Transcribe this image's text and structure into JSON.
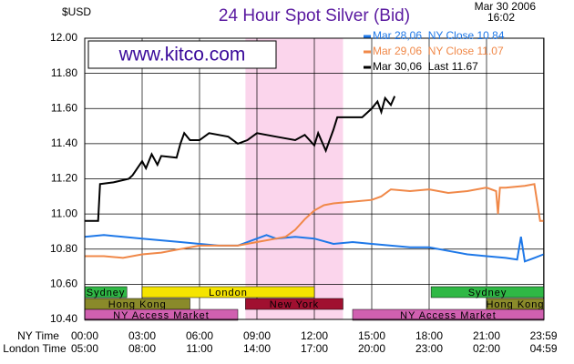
{
  "chart_data": {
    "type": "line",
    "title": "24 Hour Spot Silver (Bid)",
    "unit_label": "$USD",
    "date": "Mar 30 2006",
    "time": "16:02",
    "watermark": "www.kitco.com",
    "x_row_labels": [
      "NY Time",
      "London Time"
    ],
    "xlim": [
      0,
      24
    ],
    "xticks": [
      {
        "value": 0,
        "label": "00:00"
      },
      {
        "value": 3,
        "label": "03:00"
      },
      {
        "value": 6,
        "label": "06:00"
      },
      {
        "value": 9,
        "label": "09:00"
      },
      {
        "value": 12,
        "label": "12:00"
      },
      {
        "value": 15,
        "label": "15:00"
      },
      {
        "value": 18,
        "label": "18:00"
      },
      {
        "value": 21,
        "label": "21:00"
      },
      {
        "value": 23.98,
        "label": "23:59"
      }
    ],
    "london_tick_labels": [
      "05:00",
      "08:00",
      "11:00",
      "14:00",
      "17:00",
      "20:00",
      "23:00",
      "02:00",
      "04:59"
    ],
    "ylim": [
      10.4,
      12.0
    ],
    "yticks": [
      {
        "value": 10.4,
        "label": "10.40"
      },
      {
        "value": 10.6,
        "label": "10.60"
      },
      {
        "value": 10.8,
        "label": "10.80"
      },
      {
        "value": 11.0,
        "label": "11.00"
      },
      {
        "value": 11.2,
        "label": "11.20"
      },
      {
        "value": 11.4,
        "label": "11.40"
      },
      {
        "value": 11.6,
        "label": "11.60"
      },
      {
        "value": 11.8,
        "label": "11.80"
      },
      {
        "value": 12.0,
        "label": "12.00"
      }
    ],
    "grid": true,
    "highlight": {
      "start": 8.4,
      "end": 13.5,
      "color": "#fbd5ec"
    },
    "session_rows": [
      [
        {
          "name": "Sydney",
          "color": "#2fb845",
          "start": 0,
          "end": 2.2
        },
        {
          "name": "London",
          "color": "#f5e400",
          "start": 3,
          "end": 12
        },
        {
          "name": "Sydney",
          "color": "#2fb845",
          "start": 18.1,
          "end": 24
        }
      ],
      [
        {
          "name": "Hong Kong",
          "color": "#8a8a2a",
          "start": 0,
          "end": 5.5
        },
        {
          "name": "New York",
          "color": "#a01030",
          "start": 8.4,
          "end": 13.5
        },
        {
          "name": "Hong Kong",
          "color": "#8a8a2a",
          "start": 21,
          "end": 24
        }
      ],
      [
        {
          "name": "NY Access Market",
          "color": "#d060b0",
          "start": 0,
          "end": 8
        },
        {
          "name": "NY Access Market",
          "color": "#d060b0",
          "start": 14,
          "end": 24
        }
      ]
    ],
    "series": [
      {
        "name": "Mar 28,06  NY Close 10.84",
        "color": "#1e78e8",
        "x": [
          0,
          1,
          2,
          3,
          4,
          5,
          6,
          7,
          8,
          9,
          9.5,
          10,
          11,
          12,
          13,
          14,
          15,
          16,
          17,
          18,
          19,
          20,
          21,
          22,
          22.6,
          22.8,
          23,
          23.5,
          23.98
        ],
        "values": [
          10.87,
          10.88,
          10.87,
          10.86,
          10.85,
          10.84,
          10.83,
          10.82,
          10.82,
          10.86,
          10.88,
          10.86,
          10.87,
          10.86,
          10.83,
          10.84,
          10.83,
          10.82,
          10.81,
          10.81,
          10.79,
          10.77,
          10.76,
          10.75,
          10.74,
          10.87,
          10.73,
          10.75,
          10.77
        ]
      },
      {
        "name": "Mar 29,06  NY Close 11.07",
        "color": "#f08848",
        "x": [
          0,
          1,
          2,
          3,
          4,
          5,
          6,
          7,
          8,
          9,
          10,
          10.5,
          11,
          11.5,
          12,
          12.5,
          13,
          14,
          15,
          15.5,
          16,
          17,
          18,
          19,
          20,
          21,
          21.5,
          21.6,
          21.7,
          22,
          23,
          23.5,
          23.8,
          23.98
        ],
        "values": [
          10.76,
          10.76,
          10.75,
          10.77,
          10.78,
          10.8,
          10.82,
          10.82,
          10.82,
          10.84,
          10.86,
          10.87,
          10.91,
          10.97,
          11.02,
          11.05,
          11.06,
          11.07,
          11.08,
          11.1,
          11.14,
          11.13,
          11.14,
          11.12,
          11.13,
          11.15,
          11.13,
          11.0,
          11.15,
          11.15,
          11.16,
          11.17,
          10.96,
          10.96
        ]
      },
      {
        "name": "Mar 30,06  Last 11.67",
        "color": "#000000",
        "x": [
          0,
          0.7,
          0.8,
          1.5,
          2.3,
          2.5,
          3.0,
          3.2,
          3.5,
          3.8,
          4,
          4.8,
          5,
          5.2,
          5.5,
          6,
          6.5,
          7.5,
          8,
          8.5,
          9,
          10,
          11,
          11.5,
          12,
          12.2,
          12.6,
          13,
          13.2,
          14.5,
          15,
          15.3,
          15.5,
          15.7,
          16,
          16.2
        ],
        "values": [
          10.96,
          10.96,
          11.17,
          11.18,
          11.2,
          11.22,
          11.3,
          11.26,
          11.34,
          11.28,
          11.33,
          11.32,
          11.4,
          11.46,
          11.42,
          11.42,
          11.46,
          11.44,
          11.4,
          11.42,
          11.46,
          11.44,
          11.42,
          11.45,
          11.39,
          11.46,
          11.36,
          11.48,
          11.55,
          11.55,
          11.6,
          11.64,
          11.58,
          11.66,
          11.62,
          11.67
        ]
      }
    ]
  }
}
